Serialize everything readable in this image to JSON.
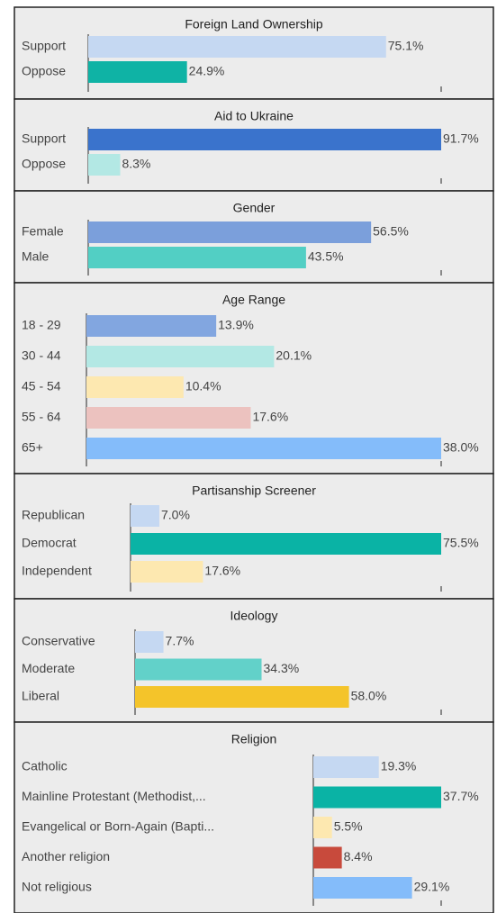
{
  "chart_data": [
    {
      "type": "bar",
      "orientation": "horizontal",
      "title": "Foreign Land Ownership",
      "categories": [
        "Support",
        "Oppose"
      ],
      "values": [
        75.1,
        24.9
      ],
      "value_labels": [
        "75.1%",
        "24.9%"
      ],
      "colors": [
        "#c5d8f2",
        "#0fb3a5"
      ],
      "xlim": [
        0,
        89
      ]
    },
    {
      "type": "bar",
      "orientation": "horizontal",
      "title": "Aid to Ukraine",
      "categories": [
        "Support",
        "Oppose"
      ],
      "values": [
        91.7,
        8.3
      ],
      "value_labels": [
        "91.7%",
        "8.3%"
      ],
      "colors": [
        "#3a73cc",
        "#b3e8e4"
      ],
      "xlim": [
        0,
        91.7
      ]
    },
    {
      "type": "bar",
      "orientation": "horizontal",
      "title": "Gender",
      "categories": [
        "Female",
        "Male"
      ],
      "values": [
        56.5,
        43.5
      ],
      "value_labels": [
        "56.5%",
        "43.5%"
      ],
      "colors": [
        "#7b9fdb",
        "#52cfc4"
      ],
      "xlim": [
        0,
        70.5
      ]
    },
    {
      "type": "bar",
      "orientation": "horizontal",
      "title": "Age Range",
      "categories": [
        "18 - 29",
        "30 - 44",
        "45 - 54",
        "55 - 64",
        "65+"
      ],
      "values": [
        13.9,
        20.1,
        10.4,
        17.6,
        38.0
      ],
      "value_labels": [
        "13.9%",
        "20.1%",
        "10.4%",
        "17.6%",
        "38.0%"
      ],
      "colors": [
        "#82a6e0",
        "#b3e8e4",
        "#fde8b0",
        "#ecc2bf",
        "#84bcfa"
      ],
      "xlim": [
        0,
        38
      ]
    },
    {
      "type": "bar",
      "orientation": "horizontal",
      "title": "Partisanship Screener",
      "categories": [
        "Republican",
        "Democrat",
        "Independent"
      ],
      "values": [
        7.0,
        75.5,
        17.6
      ],
      "value_labels": [
        "7.0%",
        "75.5%",
        "17.6%"
      ],
      "colors": [
        "#c5d8f2",
        "#0ab3a5",
        "#fde8b0"
      ],
      "xlim": [
        0,
        75.5
      ]
    },
    {
      "type": "bar",
      "orientation": "horizontal",
      "title": "Ideology",
      "categories": [
        "Conservative",
        "Moderate",
        "Liberal"
      ],
      "values": [
        7.7,
        34.3,
        58.0
      ],
      "value_labels": [
        "7.7%",
        "34.3%",
        "58.0%"
      ],
      "colors": [
        "#c5d8f2",
        "#62d1c9",
        "#f4c42a"
      ],
      "xlim": [
        0,
        83
      ]
    },
    {
      "type": "bar",
      "orientation": "horizontal",
      "title": "Religion",
      "categories": [
        "Catholic",
        "Mainline Protestant (Methodist,...",
        "Evangelical or Born-Again (Bapti...",
        "Another religion",
        "Not religious"
      ],
      "values": [
        19.3,
        37.7,
        5.5,
        8.4,
        29.1
      ],
      "value_labels": [
        "19.3%",
        "37.7%",
        "5.5%",
        "8.4%",
        "29.1%"
      ],
      "colors": [
        "#c5d8f2",
        "#0ab3a5",
        "#fde8b0",
        "#c84a3c",
        "#84bcfa"
      ],
      "xlim": [
        0,
        37.7
      ]
    }
  ]
}
